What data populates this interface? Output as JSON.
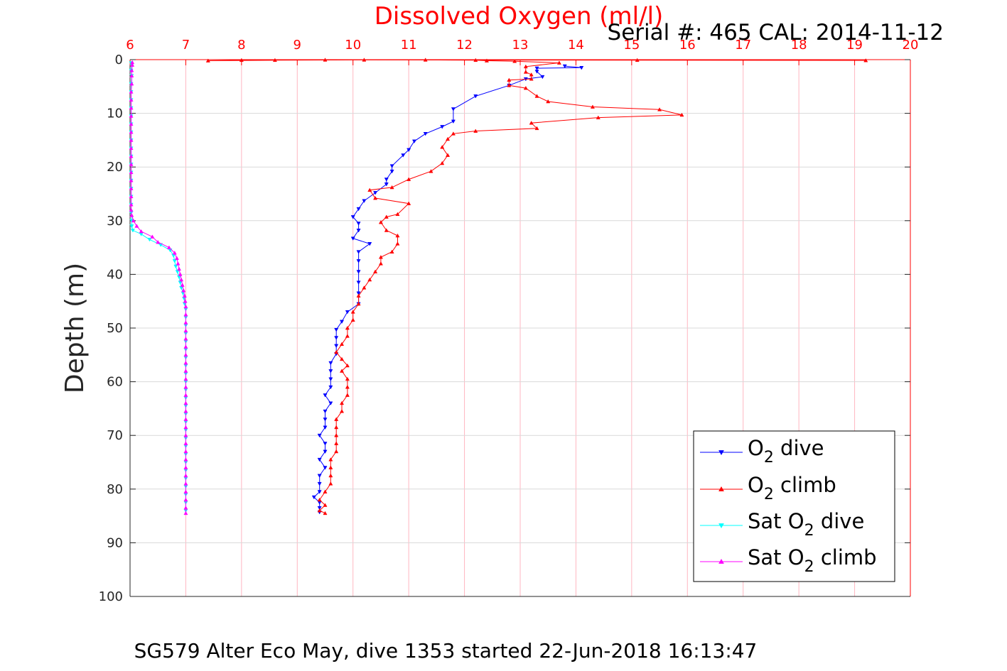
{
  "chart_data": {
    "type": "line",
    "title": "Dissolved Oxygen (ml/l)",
    "subtitle": "Serial #: 465  CAL: 2014-11-12",
    "xlabel": "",
    "ylabel": "Depth (m)",
    "footer": "SG579 Alter Eco May, dive 1353 started 22-Jun-2018 16:13:47",
    "x_axis_position": "top",
    "y_reversed": true,
    "xlim": [
      6,
      20
    ],
    "ylim": [
      0,
      100
    ],
    "x_ticks": [
      "6",
      "7",
      "8",
      "9",
      "10",
      "11",
      "12",
      "13",
      "14",
      "15",
      "16",
      "17",
      "18",
      "19",
      "20"
    ],
    "y_ticks": [
      "0",
      "10",
      "20",
      "30",
      "40",
      "50",
      "60",
      "70",
      "80",
      "90",
      "100"
    ],
    "grid": true,
    "legend_position": "bottom-right",
    "series": [
      {
        "key": "o2_dive",
        "name": "O2 dive",
        "legend": {
          "pre": "O",
          "sub": "2",
          "post": " dive"
        },
        "color": "#0000ff",
        "marker": "triangle-down",
        "points": [
          [
            13.8,
            1.2
          ],
          [
            14.1,
            1.5
          ],
          [
            13.3,
            1.6
          ],
          [
            13.3,
            2.2
          ],
          [
            13.4,
            3.2
          ],
          [
            13.1,
            3.6
          ],
          [
            12.8,
            4.8
          ],
          [
            12.2,
            6.8
          ],
          [
            11.8,
            9.2
          ],
          [
            11.8,
            11.5
          ],
          [
            11.6,
            12.5
          ],
          [
            11.3,
            13.8
          ],
          [
            11.1,
            15.2
          ],
          [
            11.0,
            16.8
          ],
          [
            10.9,
            17.8
          ],
          [
            10.7,
            19.8
          ],
          [
            10.7,
            20.8
          ],
          [
            10.6,
            22.3
          ],
          [
            10.6,
            23.2
          ],
          [
            10.4,
            24.8
          ],
          [
            10.2,
            26.3
          ],
          [
            10.1,
            27.8
          ],
          [
            10.0,
            29.3
          ],
          [
            10.1,
            30.5
          ],
          [
            10.1,
            31.8
          ],
          [
            10.0,
            33.3
          ],
          [
            10.3,
            34.3
          ],
          [
            10.1,
            35.8
          ],
          [
            10.1,
            37.5
          ],
          [
            10.1,
            39.5
          ],
          [
            10.1,
            41.5
          ],
          [
            10.1,
            43.5
          ],
          [
            10.1,
            45.5
          ],
          [
            9.9,
            47.0
          ],
          [
            9.8,
            48.8
          ],
          [
            9.7,
            50.3
          ],
          [
            9.7,
            51.8
          ],
          [
            9.7,
            53.3
          ],
          [
            9.7,
            54.8
          ],
          [
            9.6,
            56.5
          ],
          [
            9.6,
            58.0
          ],
          [
            9.6,
            59.5
          ],
          [
            9.6,
            61.0
          ],
          [
            9.5,
            62.5
          ],
          [
            9.6,
            64.0
          ],
          [
            9.5,
            65.5
          ],
          [
            9.5,
            67.0
          ],
          [
            9.5,
            68.5
          ],
          [
            9.4,
            70.0
          ],
          [
            9.5,
            71.5
          ],
          [
            9.5,
            73.0
          ],
          [
            9.4,
            74.5
          ],
          [
            9.5,
            76.0
          ],
          [
            9.4,
            77.5
          ],
          [
            9.4,
            79.0
          ],
          [
            9.4,
            80.5
          ],
          [
            9.3,
            81.5
          ],
          [
            9.4,
            82.5
          ],
          [
            9.4,
            83.5
          ],
          [
            9.4,
            84.3
          ]
        ]
      },
      {
        "key": "o2_climb",
        "name": "O2 climb",
        "legend": {
          "pre": "O",
          "sub": "2",
          "post": " climb"
        },
        "color": "#ff0000",
        "marker": "triangle-up",
        "points": [
          [
            9.5,
            84.5
          ],
          [
            9.4,
            84.0
          ],
          [
            9.5,
            83.0
          ],
          [
            9.4,
            82.0
          ],
          [
            9.5,
            80.5
          ],
          [
            9.6,
            79.0
          ],
          [
            9.6,
            77.5
          ],
          [
            9.6,
            76.0
          ],
          [
            9.6,
            74.5
          ],
          [
            9.7,
            73.0
          ],
          [
            9.7,
            71.5
          ],
          [
            9.7,
            70.0
          ],
          [
            9.7,
            68.5
          ],
          [
            9.7,
            67.0
          ],
          [
            9.8,
            65.5
          ],
          [
            9.8,
            64.0
          ],
          [
            9.9,
            62.5
          ],
          [
            9.9,
            61.0
          ],
          [
            9.9,
            59.5
          ],
          [
            9.8,
            58.0
          ],
          [
            9.9,
            57.0
          ],
          [
            9.8,
            55.8
          ],
          [
            9.7,
            54.5
          ],
          [
            9.8,
            53.0
          ],
          [
            9.9,
            51.5
          ],
          [
            9.9,
            50.0
          ],
          [
            10.0,
            48.5
          ],
          [
            10.0,
            47.0
          ],
          [
            10.1,
            45.5
          ],
          [
            10.1,
            44.0
          ],
          [
            10.2,
            42.5
          ],
          [
            10.3,
            41.0
          ],
          [
            10.4,
            39.5
          ],
          [
            10.5,
            38.0
          ],
          [
            10.5,
            36.8
          ],
          [
            10.7,
            35.8
          ],
          [
            10.8,
            34.3
          ],
          [
            10.8,
            32.8
          ],
          [
            10.6,
            31.8
          ],
          [
            10.5,
            30.3
          ],
          [
            10.6,
            29.3
          ],
          [
            10.8,
            28.8
          ],
          [
            11.0,
            26.8
          ],
          [
            10.4,
            25.8
          ],
          [
            10.3,
            24.3
          ],
          [
            10.7,
            23.8
          ],
          [
            11.0,
            22.3
          ],
          [
            11.4,
            20.8
          ],
          [
            11.6,
            19.3
          ],
          [
            11.7,
            17.8
          ],
          [
            11.6,
            16.3
          ],
          [
            11.7,
            14.8
          ],
          [
            11.8,
            13.8
          ],
          [
            12.2,
            13.3
          ],
          [
            13.3,
            12.8
          ],
          [
            13.2,
            11.8
          ],
          [
            14.4,
            10.8
          ],
          [
            15.9,
            10.3
          ],
          [
            15.5,
            9.3
          ],
          [
            14.3,
            8.8
          ],
          [
            13.5,
            7.8
          ],
          [
            13.3,
            6.8
          ],
          [
            13.1,
            5.3
          ],
          [
            12.8,
            4.8
          ],
          [
            12.8,
            3.8
          ],
          [
            13.2,
            3.6
          ],
          [
            13.2,
            2.8
          ],
          [
            13.1,
            2.3
          ],
          [
            13.1,
            1.3
          ],
          [
            13.7,
            0.6
          ],
          [
            12.9,
            0.3
          ],
          [
            12.4,
            0.2
          ],
          [
            12.2,
            0.1
          ],
          [
            11.3,
            0.05
          ],
          [
            9.5,
            0.05
          ],
          [
            8.0,
            0.1
          ],
          [
            7.4,
            0.2
          ],
          [
            8.6,
            0.1
          ],
          [
            10.2,
            0.05
          ],
          [
            15.1,
            0.1
          ],
          [
            19.2,
            0.15
          ]
        ]
      },
      {
        "key": "sat_dive",
        "name": "Sat O2 dive",
        "legend": {
          "pre": "Sat O",
          "sub": "2",
          "post": " dive"
        },
        "color": "#00ffff",
        "marker": "triangle-down",
        "points": [
          [
            6.02,
            0.6
          ],
          [
            6.03,
            1.0
          ],
          [
            6.02,
            2.0
          ],
          [
            6.03,
            3.0
          ],
          [
            6.02,
            4.5
          ],
          [
            6.02,
            6.0
          ],
          [
            6.02,
            7.5
          ],
          [
            6.02,
            9.0
          ],
          [
            6.02,
            10.5
          ],
          [
            6.02,
            12.0
          ],
          [
            6.02,
            13.5
          ],
          [
            6.02,
            15.0
          ],
          [
            6.02,
            16.5
          ],
          [
            6.02,
            18.0
          ],
          [
            6.02,
            19.5
          ],
          [
            6.02,
            21.0
          ],
          [
            6.02,
            22.5
          ],
          [
            6.02,
            24.0
          ],
          [
            6.02,
            25.5
          ],
          [
            6.02,
            27.0
          ],
          [
            6.02,
            28.5
          ],
          [
            6.03,
            30.0
          ],
          [
            6.03,
            31.0
          ],
          [
            6.05,
            31.8
          ],
          [
            6.2,
            32.5
          ],
          [
            6.35,
            33.5
          ],
          [
            6.55,
            34.5
          ],
          [
            6.72,
            35.5
          ],
          [
            6.78,
            36.5
          ],
          [
            6.8,
            37.5
          ],
          [
            6.82,
            38.5
          ],
          [
            6.85,
            39.5
          ],
          [
            6.88,
            40.5
          ],
          [
            6.9,
            41.5
          ],
          [
            6.92,
            42.5
          ],
          [
            6.95,
            43.5
          ],
          [
            6.97,
            44.5
          ],
          [
            6.98,
            45.5
          ],
          [
            7.0,
            46.5
          ],
          [
            7.0,
            48.0
          ],
          [
            7.0,
            49.5
          ],
          [
            7.0,
            51.0
          ],
          [
            7.0,
            52.5
          ],
          [
            7.0,
            54.0
          ],
          [
            7.0,
            55.5
          ],
          [
            7.0,
            57.0
          ],
          [
            7.0,
            58.5
          ],
          [
            7.0,
            60.0
          ],
          [
            7.0,
            61.5
          ],
          [
            7.0,
            63.0
          ],
          [
            7.0,
            64.5
          ],
          [
            7.0,
            66.0
          ],
          [
            7.0,
            67.5
          ],
          [
            7.0,
            69.0
          ],
          [
            7.0,
            70.5
          ],
          [
            7.0,
            72.0
          ],
          [
            7.0,
            73.5
          ],
          [
            7.0,
            75.0
          ],
          [
            7.0,
            76.5
          ],
          [
            7.0,
            78.0
          ],
          [
            7.0,
            79.5
          ],
          [
            7.0,
            81.0
          ],
          [
            7.0,
            82.5
          ],
          [
            7.0,
            84.0
          ]
        ]
      },
      {
        "key": "sat_climb",
        "name": "Sat O2 climb",
        "legend": {
          "pre": "Sat O",
          "sub": "2",
          "post": " climb"
        },
        "color": "#ff00ff",
        "marker": "triangle-up",
        "points": [
          [
            7.0,
            84.5
          ],
          [
            7.0,
            83.5
          ],
          [
            7.0,
            82.0
          ],
          [
            7.0,
            80.5
          ],
          [
            7.0,
            79.0
          ],
          [
            7.0,
            77.5
          ],
          [
            7.0,
            76.0
          ],
          [
            7.0,
            74.5
          ],
          [
            7.0,
            73.0
          ],
          [
            7.0,
            71.5
          ],
          [
            7.0,
            70.0
          ],
          [
            7.0,
            68.5
          ],
          [
            7.0,
            67.0
          ],
          [
            7.0,
            65.5
          ],
          [
            7.0,
            64.0
          ],
          [
            7.0,
            62.5
          ],
          [
            7.0,
            61.0
          ],
          [
            7.0,
            59.5
          ],
          [
            7.0,
            58.0
          ],
          [
            7.0,
            56.5
          ],
          [
            7.0,
            55.0
          ],
          [
            7.0,
            53.5
          ],
          [
            7.0,
            52.0
          ],
          [
            7.0,
            50.5
          ],
          [
            7.0,
            49.0
          ],
          [
            7.0,
            47.5
          ],
          [
            7.0,
            46.0
          ],
          [
            6.99,
            45.0
          ],
          [
            6.98,
            44.0
          ],
          [
            6.96,
            43.0
          ],
          [
            6.94,
            42.0
          ],
          [
            6.92,
            41.0
          ],
          [
            6.9,
            40.0
          ],
          [
            6.88,
            39.0
          ],
          [
            6.86,
            38.0
          ],
          [
            6.84,
            37.0
          ],
          [
            6.8,
            36.0
          ],
          [
            6.7,
            35.0
          ],
          [
            6.5,
            34.0
          ],
          [
            6.4,
            33.0
          ],
          [
            6.2,
            32.0
          ],
          [
            6.12,
            31.0
          ],
          [
            6.06,
            30.0
          ],
          [
            6.03,
            29.0
          ],
          [
            6.02,
            28.0
          ],
          [
            6.02,
            27.0
          ],
          [
            6.02,
            25.5
          ],
          [
            6.02,
            24.0
          ],
          [
            6.02,
            22.5
          ],
          [
            6.02,
            21.0
          ],
          [
            6.02,
            19.5
          ],
          [
            6.02,
            18.0
          ],
          [
            6.02,
            16.5
          ],
          [
            6.02,
            15.0
          ],
          [
            6.02,
            13.5
          ],
          [
            6.02,
            12.0
          ],
          [
            6.02,
            10.5
          ],
          [
            6.02,
            9.0
          ],
          [
            6.02,
            7.5
          ],
          [
            6.02,
            6.0
          ],
          [
            6.03,
            4.5
          ],
          [
            6.03,
            3.0
          ],
          [
            6.03,
            2.0
          ],
          [
            6.04,
            1.0
          ],
          [
            6.04,
            0.5
          ]
        ]
      }
    ]
  },
  "colors": {
    "x_axis": "#ff0000",
    "grid_x": "#ffb6c1",
    "grid_y": "#d9d9d9",
    "frame": "#262626",
    "title": "#ff0000"
  }
}
